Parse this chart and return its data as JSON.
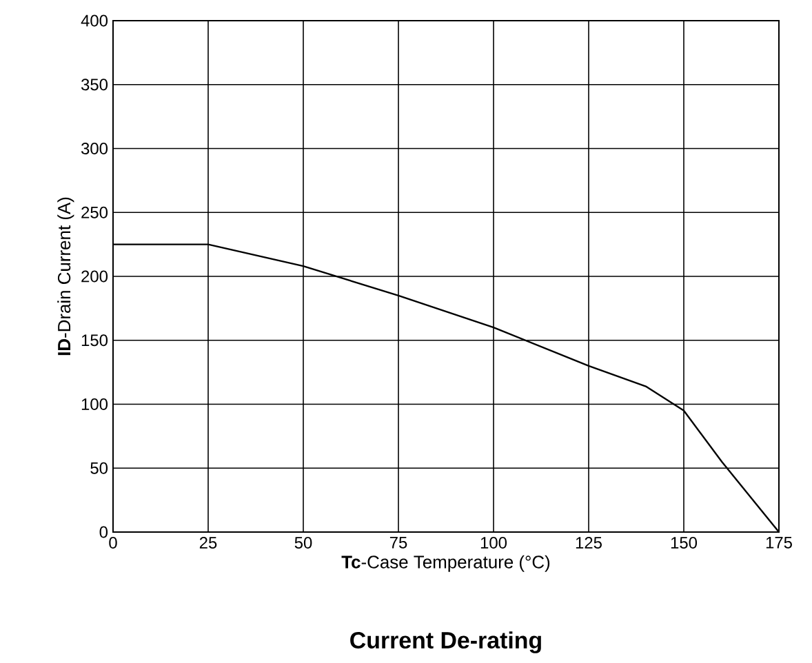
{
  "chart_data": {
    "type": "line",
    "title": "Current De-rating",
    "xlabel": "**Tc**-Case Temperature (°C)",
    "ylabel": "**ID**-Drain Current (A)",
    "x": [
      0,
      25,
      50,
      75,
      100,
      125,
      140,
      150,
      160,
      175
    ],
    "series": [
      {
        "color": "#000000",
        "values": [
          225,
          225,
          208,
          185,
          160,
          130,
          114,
          95,
          55,
          0
        ]
      }
    ],
    "xlim": [
      0,
      175
    ],
    "ylim": [
      0,
      400
    ],
    "xticks": [
      0,
      25,
      50,
      75,
      100,
      125,
      150,
      175
    ],
    "yticks": [
      0,
      50,
      100,
      150,
      200,
      250,
      300,
      350,
      400
    ],
    "grid": true,
    "marker": "none",
    "line_style": "solid"
  }
}
